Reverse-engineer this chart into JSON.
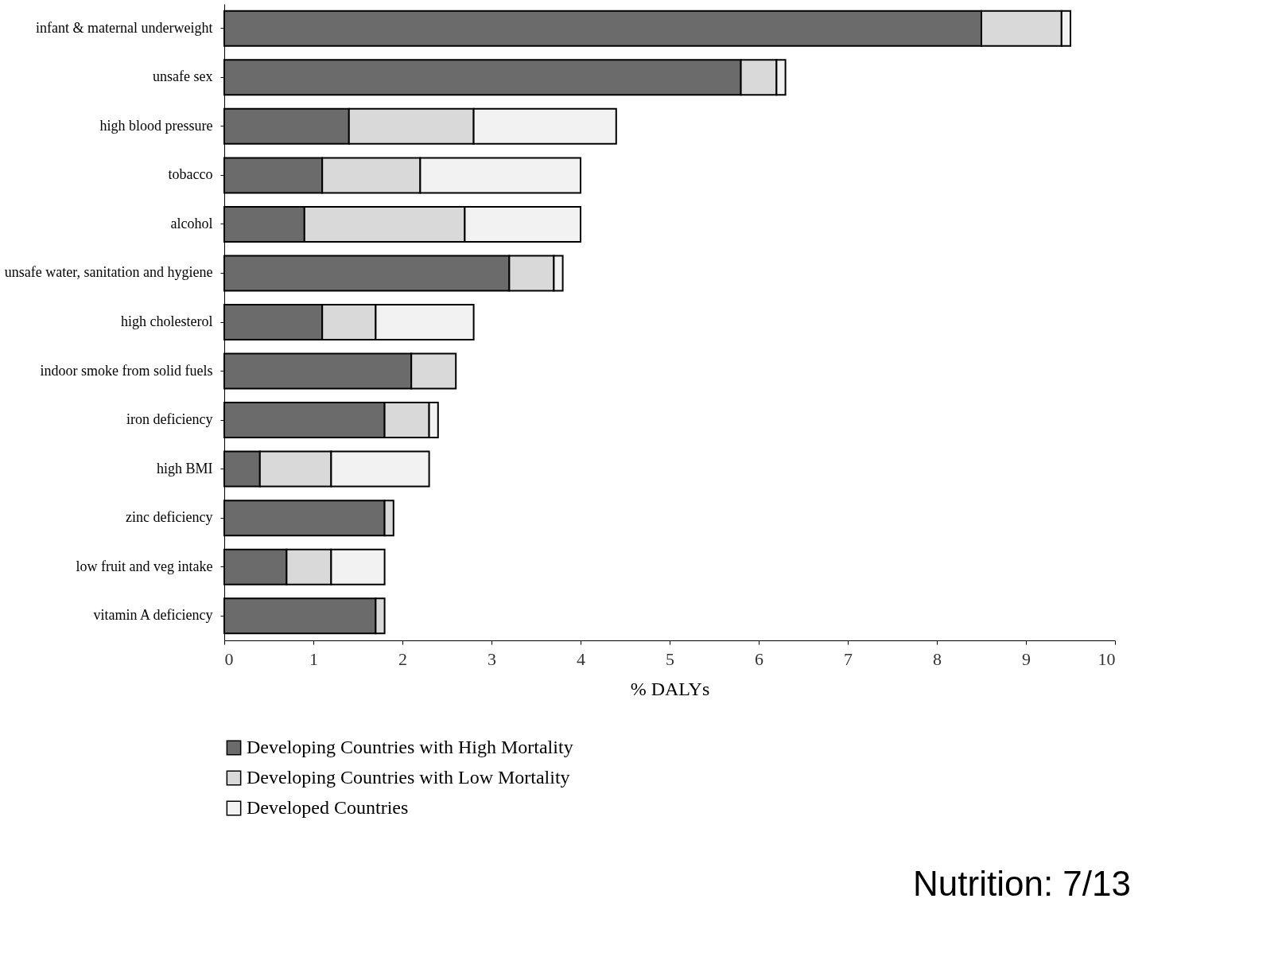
{
  "chart_data": {
    "type": "bar",
    "orientation": "horizontal",
    "stacked": true,
    "xlabel": "% DALYs",
    "categories": [
      "infant & maternal underweight",
      "unsafe sex",
      "high blood pressure",
      "tobacco",
      "alcohol",
      "unsafe water, sanitation and hygiene",
      "high cholesterol",
      "indoor smoke from solid fuels",
      "iron deficiency",
      "high BMI",
      "zinc deficiency",
      "low fruit and veg intake",
      "vitamin A deficiency"
    ],
    "series": [
      {
        "name": "Developing Countries with High Mortality",
        "color": "#6b6b6b",
        "values": [
          8.5,
          5.8,
          1.4,
          1.1,
          0.9,
          3.2,
          1.1,
          2.1,
          1.8,
          0.4,
          1.8,
          0.7,
          1.7
        ]
      },
      {
        "name": "Developing Countries with Low Mortality",
        "color": "#d9d9d9",
        "values": [
          0.9,
          0.4,
          1.4,
          1.1,
          1.8,
          0.5,
          0.6,
          0.5,
          0.5,
          0.8,
          0.1,
          0.5,
          0.1
        ]
      },
      {
        "name": "Developed Countries",
        "color": "#f2f2f2",
        "values": [
          0.1,
          0.1,
          1.6,
          1.8,
          1.3,
          0.1,
          1.1,
          null,
          0.1,
          1.1,
          null,
          0.6,
          null
        ]
      }
    ],
    "xlim": [
      0,
      10
    ],
    "xticks": [
      0,
      1,
      2,
      3,
      4,
      5,
      6,
      7,
      8,
      9,
      10
    ],
    "grid": false,
    "legend": "bottom",
    "annotations": [
      "Nutrition: 7/13"
    ]
  }
}
